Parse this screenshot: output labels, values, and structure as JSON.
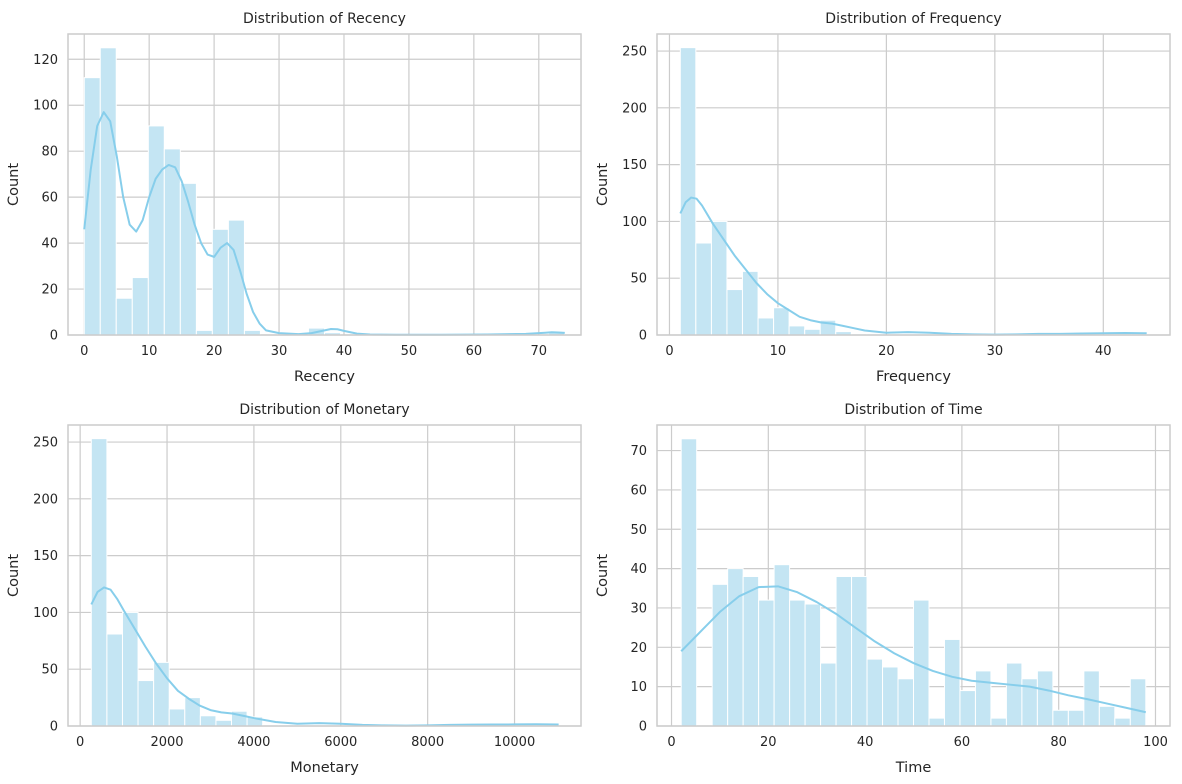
{
  "colors": {
    "bar_fill": "#c4e5f3",
    "bar_stroke": "#ffffff",
    "kde_line": "#87ceeb",
    "grid": "#cccccc",
    "frame": "#cccccc",
    "background": "#ffffff"
  },
  "chart_data": [
    {
      "type": "bar",
      "title": "Distribution of Recency",
      "xlabel": "Recency",
      "ylabel": "Count",
      "xlim": [
        -2.5,
        76.5
      ],
      "ylim": [
        0,
        131
      ],
      "xticks": [
        0,
        10,
        20,
        30,
        40,
        50,
        60,
        70
      ],
      "yticks": [
        0,
        20,
        40,
        60,
        80,
        100,
        120
      ],
      "grid": true,
      "bin_edges": [
        0,
        2.47,
        4.93,
        7.4,
        9.87,
        12.33,
        14.8,
        17.27,
        19.73,
        22.2,
        24.67,
        27.13,
        29.6,
        32.07,
        34.53,
        37,
        39.47,
        41.93,
        44.4,
        46.87,
        49.33,
        51.8,
        54.27,
        56.73,
        59.2,
        61.67,
        64.13,
        66.6,
        69.07,
        71.53,
        74
      ],
      "counts": [
        112,
        125,
        16,
        25,
        91,
        81,
        66,
        2,
        46,
        50,
        2,
        0,
        0,
        0,
        3,
        1,
        0,
        0,
        0,
        0,
        0,
        0,
        0,
        0,
        0,
        0,
        0,
        0,
        0,
        1
      ],
      "kde": {
        "x": [
          0,
          1,
          2,
          3,
          4,
          5,
          6,
          7,
          8,
          9,
          10,
          11,
          12,
          13,
          14,
          15,
          16,
          17,
          18,
          19,
          20,
          21,
          22,
          23,
          24,
          25,
          26,
          27,
          28,
          30,
          33,
          35,
          37,
          38,
          39,
          40,
          42,
          44,
          48,
          55,
          62,
          68,
          71,
          72,
          73,
          74
        ],
        "y": [
          46,
          72,
          91,
          97,
          93,
          78,
          60,
          48,
          45,
          50,
          60,
          68,
          72,
          74,
          73,
          67,
          58,
          48,
          40,
          35,
          34,
          38,
          40,
          37,
          28,
          18,
          10,
          5,
          2,
          0.8,
          0.4,
          0.8,
          2,
          2.6,
          2.5,
          1.8,
          0.6,
          0.2,
          0.1,
          0.1,
          0.2,
          0.5,
          1,
          1.2,
          1.1,
          0.9
        ]
      }
    },
    {
      "type": "bar",
      "title": "Distribution of Frequency",
      "xlabel": "Frequency",
      "ylabel": "Count",
      "xlim": [
        -1.15,
        46.15
      ],
      "ylim": [
        0,
        265
      ],
      "xticks": [
        0,
        10,
        20,
        30,
        40
      ],
      "yticks": [
        0,
        50,
        100,
        150,
        200,
        250
      ],
      "grid": true,
      "bin_edges": [
        1,
        2.43,
        3.87,
        5.3,
        6.73,
        8.17,
        9.6,
        11.03,
        12.47,
        13.9,
        15.33,
        16.77,
        18.2,
        19.63,
        21.07,
        22.5,
        23.93,
        25.37,
        26.8,
        28.23,
        29.67,
        31.1,
        32.53,
        33.97,
        35.4,
        36.83,
        38.27,
        39.7,
        41.13,
        42.57,
        44
      ],
      "counts": [
        253,
        81,
        100,
        40,
        56,
        15,
        24,
        8,
        5,
        13,
        3,
        1,
        1,
        0,
        0,
        0,
        0,
        0,
        0,
        0,
        0,
        0,
        0,
        0,
        0,
        0,
        0,
        0,
        0,
        1
      ],
      "kde": {
        "x": [
          1,
          1.5,
          2,
          2.5,
          3,
          4,
          5,
          6,
          7,
          8,
          9,
          10,
          11,
          12,
          13,
          14,
          15,
          16,
          17,
          18,
          19,
          20,
          22,
          24,
          26,
          28,
          30,
          32,
          34,
          36,
          38,
          40,
          42,
          44
        ],
        "y": [
          107,
          117,
          121,
          120,
          114,
          98,
          84,
          70,
          58,
          46,
          36,
          28,
          22,
          16,
          13,
          11,
          10,
          8,
          6,
          4,
          3,
          2,
          2.5,
          2,
          1,
          0.5,
          0.3,
          0.5,
          1,
          1,
          1.3,
          1.5,
          1.8,
          1.5
        ]
      }
    },
    {
      "type": "bar",
      "title": "Distribution of Monetary",
      "xlabel": "Monetary",
      "ylabel": "Count",
      "xlim": [
        -280,
        11530
      ],
      "ylim": [
        0,
        265
      ],
      "xticks": [
        0,
        2000,
        4000,
        6000,
        8000,
        10000
      ],
      "yticks": [
        0,
        50,
        100,
        150,
        200,
        250
      ],
      "grid": true,
      "bin_edges": [
        257,
        615.6,
        974.2,
        1332.8,
        1691.4,
        2050,
        2408.6,
        2767.2,
        3125.8,
        3484.4,
        3843,
        4201.6,
        4560.2,
        4918.8,
        5277.4,
        5636,
        5994.6,
        6353.2,
        6711.8,
        7070.4,
        7429,
        7787.6,
        8146.2,
        8504.8,
        8863.4,
        9222,
        9580.6,
        9939.2,
        10297.8,
        10656.4,
        11015
      ],
      "counts": [
        253,
        81,
        100,
        40,
        56,
        15,
        25,
        9,
        5,
        13,
        8,
        1,
        1,
        0,
        0,
        0,
        0,
        0,
        0,
        0,
        0,
        0,
        0,
        0,
        0,
        0,
        0,
        0,
        0,
        1
      ],
      "kde": {
        "x": [
          257,
          400,
          550,
          700,
          850,
          1000,
          1250,
          1500,
          1750,
          2000,
          2250,
          2500,
          2750,
          3000,
          3250,
          3500,
          3750,
          4000,
          4500,
          5000,
          5500,
          6000,
          6500,
          7000,
          7500,
          8000,
          8500,
          9000,
          9500,
          10000,
          10500,
          11015
        ],
        "y": [
          107,
          118,
          122,
          120,
          112,
          102,
          86,
          70,
          55,
          42,
          31,
          24,
          18,
          14,
          12,
          11,
          9,
          7,
          3.5,
          2,
          2.5,
          2,
          1,
          0.5,
          0.3,
          0.5,
          1,
          1.2,
          1.3,
          1.4,
          1.5,
          1.3
        ]
      }
    },
    {
      "type": "bar",
      "title": "Distribution of Time",
      "xlabel": "Time",
      "ylabel": "Count",
      "xlim": [
        -3,
        103
      ],
      "ylim": [
        0,
        76.5
      ],
      "xticks": [
        0,
        20,
        40,
        60,
        80,
        100
      ],
      "yticks": [
        0,
        10,
        20,
        30,
        40,
        50,
        60,
        70
      ],
      "grid": true,
      "bin_edges": [
        2,
        5.2,
        8.4,
        11.6,
        14.8,
        18,
        21.2,
        24.4,
        27.6,
        30.8,
        34,
        37.2,
        40.4,
        43.6,
        46.8,
        50,
        53.2,
        56.4,
        59.6,
        62.8,
        66,
        69.2,
        72.4,
        75.6,
        78.8,
        82,
        85.2,
        88.4,
        91.6,
        94.8,
        98
      ],
      "counts": [
        73,
        0,
        36,
        40,
        38,
        32,
        41,
        32,
        31,
        16,
        38,
        38,
        17,
        15,
        12,
        32,
        2,
        22,
        9,
        14,
        2,
        16,
        12,
        14,
        4,
        4,
        14,
        5,
        2,
        12
      ],
      "kde": {
        "x": [
          2,
          6,
          10,
          14,
          18,
          22,
          26,
          30,
          34,
          38,
          42,
          46,
          50,
          54,
          58,
          62,
          66,
          70,
          74,
          78,
          82,
          86,
          90,
          94,
          98
        ],
        "y": [
          19,
          24,
          29,
          33,
          35.3,
          35.5,
          34,
          31.5,
          28.5,
          25,
          21.5,
          18.5,
          16,
          14,
          12.5,
          11.5,
          11,
          10.5,
          10,
          9,
          7.8,
          6.8,
          5.7,
          4.6,
          3.5
        ]
      }
    }
  ]
}
